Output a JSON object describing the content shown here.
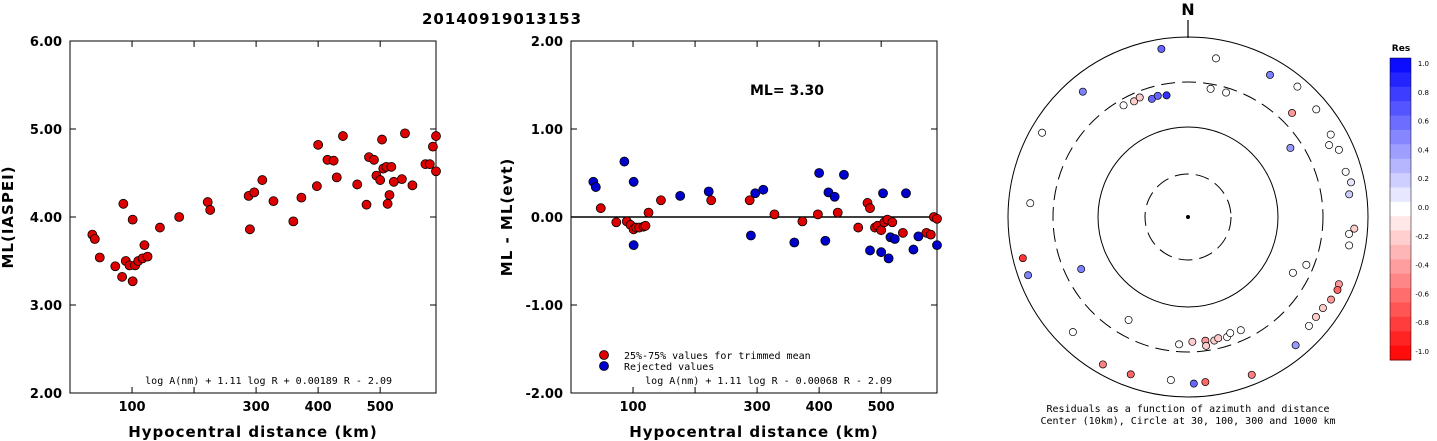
{
  "title": "20140919013153",
  "colors": {
    "red": "#dd0000",
    "blue": "#0000cc",
    "fg": "#000000"
  },
  "chart_data": [
    {
      "type": "scatter",
      "xlabel": "Hypocentral distance (km)",
      "ylabel": "ML(IASPEI)",
      "xlim": [
        0,
        590
      ],
      "ylim": [
        2.0,
        6.0
      ],
      "xticks": [
        100,
        200,
        300,
        400,
        500
      ],
      "xtick_labels": [
        "100",
        "",
        "300",
        "400",
        "500"
      ],
      "yticks": [
        2.0,
        3.0,
        4.0,
        5.0,
        6.0
      ],
      "ytick_labels": [
        "2.00",
        "3.00",
        "4.00",
        "5.00",
        "6.00"
      ],
      "formula": "log A(nm) + 1.11 log R + 0.00189 R - 2.09",
      "points": [
        [
          36,
          3.8
        ],
        [
          40,
          3.75
        ],
        [
          48,
          3.54
        ],
        [
          73,
          3.44
        ],
        [
          84,
          3.32
        ],
        [
          86,
          4.15
        ],
        [
          90,
          3.5
        ],
        [
          96,
          3.45
        ],
        [
          101,
          3.27
        ],
        [
          101,
          3.97
        ],
        [
          105,
          3.45
        ],
        [
          110,
          3.5
        ],
        [
          117,
          3.53
        ],
        [
          120,
          3.68
        ],
        [
          125,
          3.55
        ],
        [
          145,
          3.88
        ],
        [
          176,
          4.0
        ],
        [
          222,
          4.17
        ],
        [
          226,
          4.08
        ],
        [
          288,
          4.24
        ],
        [
          290,
          3.86
        ],
        [
          297,
          4.28
        ],
        [
          310,
          4.42
        ],
        [
          328,
          4.18
        ],
        [
          360,
          3.95
        ],
        [
          373,
          4.22
        ],
        [
          398,
          4.35
        ],
        [
          400,
          4.82
        ],
        [
          415,
          4.65
        ],
        [
          425,
          4.64
        ],
        [
          430,
          4.45
        ],
        [
          440,
          4.92
        ],
        [
          463,
          4.37
        ],
        [
          478,
          4.14
        ],
        [
          482,
          4.68
        ],
        [
          490,
          4.65
        ],
        [
          494,
          4.47
        ],
        [
          500,
          4.42
        ],
        [
          503,
          4.88
        ],
        [
          505,
          4.55
        ],
        [
          510,
          4.57
        ],
        [
          512,
          4.15
        ],
        [
          515,
          4.25
        ],
        [
          518,
          4.57
        ],
        [
          522,
          4.4
        ],
        [
          535,
          4.43
        ],
        [
          540,
          4.95
        ],
        [
          552,
          4.36
        ],
        [
          573,
          4.6
        ],
        [
          580,
          4.6
        ],
        [
          585,
          4.8
        ],
        [
          590,
          4.92
        ],
        [
          593,
          4.52
        ]
      ]
    },
    {
      "type": "scatter",
      "xlabel": "Hypocentral distance (km)",
      "ylabel": "ML - ML(evt)",
      "xlim": [
        0,
        590
      ],
      "ylim": [
        -2.0,
        2.0
      ],
      "xticks": [
        100,
        200,
        300,
        400,
        500
      ],
      "xtick_labels": [
        "100",
        "",
        "300",
        "400",
        "500"
      ],
      "yticks": [
        -2.0,
        -1.0,
        0.0,
        1.0,
        2.0
      ],
      "ytick_labels": [
        "-2.00",
        "-1.00",
        "0.00",
        "1.00",
        "2.00"
      ],
      "ml_label": "ML= 3.30",
      "legend": [
        {
          "label": "25%-75% values for trimmed mean",
          "color": "red"
        },
        {
          "label": "Rejected values",
          "color": "blue"
        }
      ],
      "formula": "log A(nm) + 1.11 log R - 0.00068 R - 2.09",
      "series": [
        {
          "color": "red",
          "points": [
            [
              48,
              0.1
            ],
            [
              73,
              -0.06
            ],
            [
              90,
              -0.05
            ],
            [
              96,
              -0.09
            ],
            [
              101,
              -0.14
            ],
            [
              105,
              -0.12
            ],
            [
              110,
              -0.12
            ],
            [
              117,
              -0.11
            ],
            [
              120,
              -0.1
            ],
            [
              125,
              0.05
            ],
            [
              145,
              0.19
            ],
            [
              226,
              0.19
            ],
            [
              288,
              0.19
            ],
            [
              328,
              0.03
            ],
            [
              373,
              -0.05
            ],
            [
              398,
              0.03
            ],
            [
              430,
              0.05
            ],
            [
              463,
              -0.12
            ],
            [
              478,
              0.16
            ],
            [
              482,
              0.1
            ],
            [
              490,
              -0.12
            ],
            [
              494,
              -0.1
            ],
            [
              500,
              -0.15
            ],
            [
              505,
              -0.06
            ],
            [
              510,
              -0.03
            ],
            [
              518,
              -0.06
            ],
            [
              535,
              -0.18
            ],
            [
              573,
              -0.18
            ],
            [
              580,
              -0.2
            ],
            [
              585,
              0.0
            ],
            [
              590,
              -0.02
            ]
          ]
        },
        {
          "color": "blue",
          "points": [
            [
              36,
              0.4
            ],
            [
              40,
              0.34
            ],
            [
              86,
              0.63
            ],
            [
              101,
              -0.32
            ],
            [
              101,
              0.4
            ],
            [
              176,
              0.24
            ],
            [
              222,
              0.29
            ],
            [
              290,
              -0.21
            ],
            [
              297,
              0.27
            ],
            [
              310,
              0.31
            ],
            [
              360,
              -0.29
            ],
            [
              400,
              0.5
            ],
            [
              415,
              0.28
            ],
            [
              425,
              0.23
            ],
            [
              440,
              0.48
            ],
            [
              503,
              0.27
            ],
            [
              512,
              -0.47
            ],
            [
              515,
              -0.23
            ],
            [
              522,
              -0.25
            ],
            [
              540,
              0.27
            ],
            [
              552,
              -0.37
            ],
            [
              593,
              -0.32
            ],
            [
              482,
              -0.38
            ],
            [
              500,
              -0.4
            ],
            [
              410,
              -0.27
            ],
            [
              560,
              -0.22
            ]
          ]
        }
      ]
    },
    {
      "type": "polar-scatter",
      "north_label": "N",
      "caption_line1": "Residuals as a function of azimuth and distance",
      "caption_line2": "Center (10km), Circle at 30, 100, 300 and 1000 km",
      "colorbar_title": "Res",
      "colorbar_ticks": [
        "1.0",
        "0.8",
        "0.6",
        "0.4",
        "0.2",
        "0.0",
        "-0.2",
        "-0.4",
        "-0.6",
        "-0.8",
        "-1.0"
      ],
      "points_az_dist_res": [
        [
          351,
          1000,
          0.6
        ],
        [
          10,
          760,
          0.0
        ],
        [
          30,
          830,
          0.5
        ],
        [
          40,
          1000,
          0.0
        ],
        [
          63,
          700,
          0.0
        ],
        [
          50,
          920,
          0.0
        ],
        [
          60,
          850,
          0.0
        ],
        [
          66,
          860,
          0.0
        ],
        [
          74,
          830,
          0.0
        ],
        [
          78,
          900,
          0.1
        ],
        [
          82,
          800,
          0.2
        ],
        [
          94,
          900,
          -0.2
        ],
        [
          96,
          780,
          0.0
        ],
        [
          100,
          820,
          0.0
        ],
        [
          114,
          860,
          -0.4
        ],
        [
          116,
          890,
          -0.6
        ],
        [
          120,
          860,
          -0.4
        ],
        [
          124,
          800,
          -0.2
        ],
        [
          128,
          790,
          -0.2
        ],
        [
          132,
          800,
          0.0
        ],
        [
          140,
          920,
          0.4
        ],
        [
          158,
          1000,
          -0.5
        ],
        [
          174,
          880,
          -0.6
        ],
        [
          178,
          900,
          0.6
        ],
        [
          186,
          830,
          0.0
        ],
        [
          200,
          920,
          -0.6
        ],
        [
          210,
          1000,
          -0.5
        ],
        [
          225,
          800,
          0.0
        ],
        [
          250,
          1000,
          0.5
        ],
        [
          256,
          1000,
          -0.8
        ],
        [
          275,
          700,
          0.0
        ],
        [
          300,
          950,
          0.0
        ],
        [
          320,
          820,
          0.5
        ],
        [
          10,
          300,
          0.0
        ],
        [
          17,
          300,
          0.0
        ],
        [
          56,
          250,
          0.4
        ],
        [
          118,
          220,
          0.0
        ],
        [
          210,
          220,
          0.0
        ],
        [
          244,
          220,
          0.5
        ],
        [
          45,
          500,
          -0.4
        ],
        [
          112,
          280,
          0.0
        ],
        [
          330,
          290,
          0.0
        ],
        [
          335,
          280,
          -0.2
        ],
        [
          338,
          290,
          -0.2
        ],
        [
          343,
          250,
          0.6
        ],
        [
          346,
          260,
          0.6
        ],
        [
          350,
          250,
          0.8
        ],
        [
          178,
          260,
          -0.2
        ],
        [
          172,
          260,
          -0.4
        ],
        [
          168,
          270,
          -0.2
        ],
        [
          166,
          260,
          -0.2
        ],
        [
          162,
          270,
          0.0
        ],
        [
          160,
          250,
          0.0
        ],
        [
          155,
          260,
          0.0
        ],
        [
          184,
          280,
          0.0
        ],
        [
          172,
          300,
          -0.2
        ]
      ]
    }
  ]
}
